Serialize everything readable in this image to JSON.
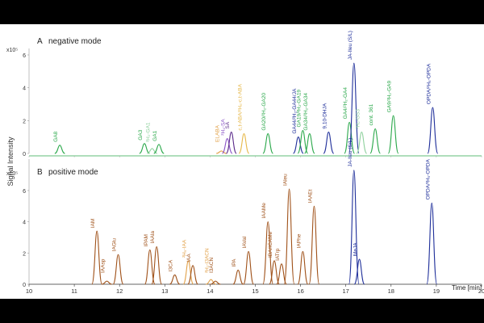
{
  "chart_data": [
    {
      "type": "line",
      "panel_label": "A",
      "title": "negative mode",
      "exponent": "x10⁵",
      "ylabel": "Signal Intensity",
      "ylim": [
        0,
        6.0
      ],
      "yticks": [
        "6",
        "4",
        "2",
        "0"
      ],
      "xlim": [
        10,
        20
      ],
      "grid": false,
      "peaks": [
        {
          "label": "GA8",
          "rt": 10.68,
          "h": 0.5,
          "color": "#2aa84a"
        },
        {
          "label": "GA3",
          "rt": 12.55,
          "h": 0.6,
          "color": "#2aa84a"
        },
        {
          "label": "²H₂-GA1",
          "rt": 12.72,
          "h": 0.3,
          "color": "#8fd19e"
        },
        {
          "label": "GA1",
          "rt": 12.87,
          "h": 0.55,
          "color": "#2aa84a"
        },
        {
          "label": "ELABA",
          "rt": 14.25,
          "h": 0.15,
          "color": "#e2a24a"
        },
        {
          "label": "²H₄-SA",
          "rt": 14.38,
          "h": 0.9,
          "color": "#8a55c8"
        },
        {
          "label": "SA",
          "rt": 14.47,
          "h": 1.3,
          "color": "#5a2a8a"
        },
        {
          "label": "c,t-ABA/²H₆-c,t-ABA",
          "rt": 14.75,
          "h": 1.2,
          "color": "#e6b84a"
        },
        {
          "label": "GA20/²H₂-GA20",
          "rt": 15.28,
          "h": 1.2,
          "color": "#2aa84a"
        },
        {
          "label": "GA44/²H₂-GA44/JA",
          "rt": 15.95,
          "h": 1.0,
          "color": "#1f2f9a"
        },
        {
          "label": "GA19/²H₂-GA19",
          "rt": 16.05,
          "h": 1.4,
          "color": "#2aa84a"
        },
        {
          "label": "GA34/²H₂-GA34",
          "rt": 16.2,
          "h": 1.2,
          "color": "#2aa84a"
        },
        {
          "label": "9,10-DHJA",
          "rt": 16.62,
          "h": 1.3,
          "color": "#1f2f9a"
        },
        {
          "label": "GA4/²H₂-GA4",
          "rt": 17.08,
          "h": 1.9,
          "color": "#2aa84a"
        },
        {
          "label": "JA-Ileu (S/L)",
          "rt": 17.18,
          "h": 5.5,
          "color": "#1f2f9a"
        },
        {
          "label": "²H₂-GS3",
          "rt": 17.35,
          "h": 1.3,
          "color": "#8fd19e"
        },
        {
          "label": "cont. 361",
          "rt": 17.65,
          "h": 1.5,
          "color": "#2aa84a"
        },
        {
          "label": "GA9/²H₂-GA9",
          "rt": 18.05,
          "h": 2.3,
          "color": "#2aa84a"
        },
        {
          "label": "OPDA/²H₅-OPDA",
          "rt": 18.92,
          "h": 2.8,
          "color": "#1f2f9a"
        }
      ]
    },
    {
      "type": "line",
      "panel_label": "B",
      "title": "positive mode",
      "exponent": "x10⁵",
      "ylim": [
        0,
        7.6
      ],
      "yticks": [
        "6",
        "4",
        "2",
        "0"
      ],
      "xlabel": "Time [min]",
      "xlim": [
        10,
        20
      ],
      "xticks": [
        "10",
        "11",
        "12",
        "13",
        "14",
        "15",
        "16",
        "17",
        "18",
        "19",
        "20"
      ],
      "grid": false,
      "peaks": [
        {
          "label": "IAM",
          "rt": 11.5,
          "h": 3.4,
          "color": "#a0521a"
        },
        {
          "label": "IAAsp",
          "rt": 11.72,
          "h": 0.2,
          "color": "#a0521a"
        },
        {
          "label": "IAGlu",
          "rt": 11.97,
          "h": 1.9,
          "color": "#a0521a"
        },
        {
          "label": "IPAM",
          "rt": 12.67,
          "h": 2.2,
          "color": "#a0521a"
        },
        {
          "label": "IAAla",
          "rt": 12.82,
          "h": 2.4,
          "color": "#a0521a"
        },
        {
          "label": "I3CA",
          "rt": 13.22,
          "h": 0.6,
          "color": "#a0521a"
        },
        {
          "label": "²H₅-IAA",
          "rt": 13.52,
          "h": 1.5,
          "color": "#e2a24a"
        },
        {
          "label": "IAA",
          "rt": 13.62,
          "h": 1.2,
          "color": "#a0521a"
        },
        {
          "label": "²H₂-I3ACN",
          "rt": 14.02,
          "h": 0.3,
          "color": "#e2a24a"
        },
        {
          "label": "I3ACN",
          "rt": 14.12,
          "h": 0.2,
          "color": "#a0521a"
        },
        {
          "label": "IPA",
          "rt": 14.62,
          "h": 0.9,
          "color": "#a0521a"
        },
        {
          "label": "IAVal",
          "rt": 14.85,
          "h": 2.1,
          "color": "#a0521a"
        },
        {
          "label": "IAAMe",
          "rt": 15.28,
          "h": 4.0,
          "color": "#a0521a"
        },
        {
          "label": "IBA/ICAMe",
          "rt": 15.42,
          "h": 1.5,
          "color": "#a0521a"
        },
        {
          "label": "IATrp",
          "rt": 15.58,
          "h": 1.3,
          "color": "#a0521a"
        },
        {
          "label": "IAleu",
          "rt": 15.75,
          "h": 6.1,
          "color": "#a0521a"
        },
        {
          "label": "IAPhe",
          "rt": 16.05,
          "h": 2.1,
          "color": "#a0521a"
        },
        {
          "label": "IAAEt",
          "rt": 16.3,
          "h": 5.0,
          "color": "#a0521a"
        },
        {
          "label": "JA-Ileu (S/L)",
          "rt": 17.18,
          "h": 7.3,
          "color": "#1f2f9a"
        },
        {
          "label": "MeJA",
          "rt": 17.3,
          "h": 1.6,
          "color": "#1f2f9a"
        },
        {
          "label": "OPDA/²H₅-OPDA",
          "rt": 18.9,
          "h": 5.2,
          "color": "#1f2f9a"
        }
      ]
    }
  ]
}
